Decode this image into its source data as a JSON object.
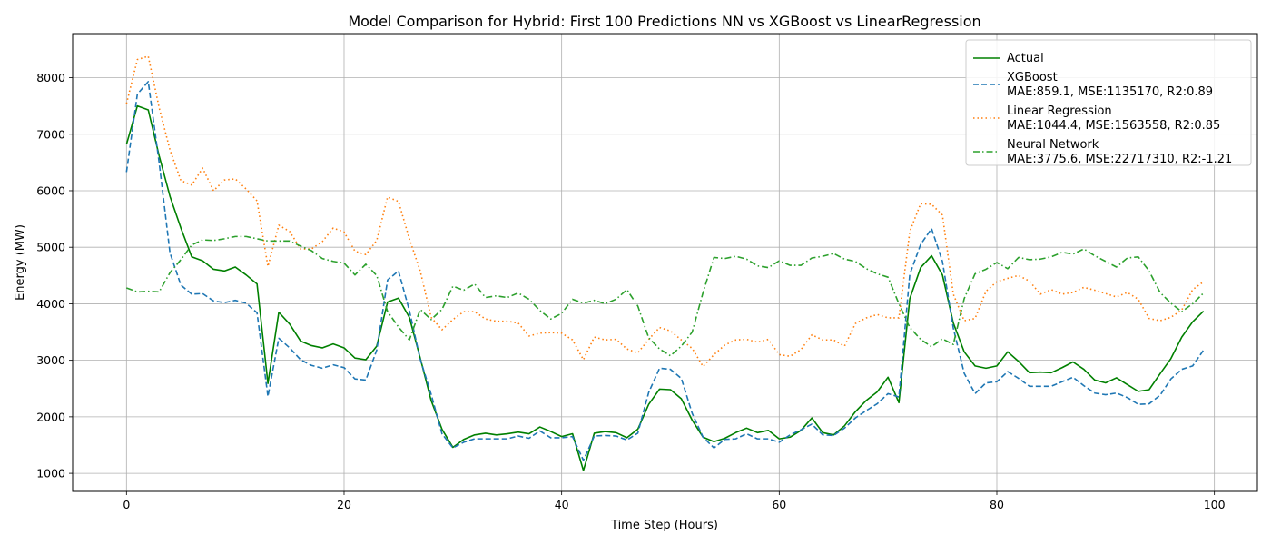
{
  "chart_data": {
    "type": "line",
    "title": "Model Comparison for Hybrid: First 100 Predictions NN vs XGBoost vs LinearRegression",
    "xlabel": "Time Step (Hours)",
    "ylabel": "Energy (MW)",
    "xlim": [
      -4.95,
      103.95
    ],
    "ylim": [
      680,
      8780
    ],
    "xticks": [
      0,
      20,
      40,
      60,
      80,
      100
    ],
    "yticks": [
      1000,
      2000,
      3000,
      4000,
      5000,
      6000,
      7000,
      8000
    ],
    "grid": true,
    "legend_position": "top-right",
    "x_start": 0,
    "series": [
      {
        "name": "Actual",
        "color": "#008000",
        "dash": "solid",
        "values": [
          6820,
          7500,
          7430,
          6620,
          5900,
          5340,
          4830,
          4760,
          4610,
          4580,
          4650,
          4510,
          4350,
          2590,
          3850,
          3640,
          3340,
          3260,
          3220,
          3290,
          3220,
          3040,
          3010,
          3250,
          4030,
          4100,
          3760,
          3040,
          2290,
          1780,
          1460,
          1600,
          1680,
          1710,
          1680,
          1700,
          1730,
          1700,
          1820,
          1740,
          1650,
          1700,
          1050,
          1710,
          1740,
          1720,
          1630,
          1780,
          2220,
          2490,
          2480,
          2320,
          1940,
          1640,
          1560,
          1620,
          1720,
          1800,
          1720,
          1760,
          1610,
          1640,
          1760,
          1980,
          1720,
          1680,
          1840,
          2090,
          2290,
          2440,
          2700,
          2250,
          4090,
          4640,
          4850,
          4510,
          3660,
          3150,
          2900,
          2860,
          2900,
          3150,
          2980,
          2780,
          2790,
          2780,
          2870,
          2970,
          2840,
          2650,
          2600,
          2690,
          2570,
          2450,
          2480,
          2760,
          3030,
          3410,
          3680,
          3870
        ]
      },
      {
        "name": "XGBoost",
        "metrics": "MAE:859.1, MSE:1135170, R2:0.89",
        "color": "#1f77b4",
        "dash": "dashed",
        "values": [
          6330,
          7710,
          7930,
          6500,
          4900,
          4330,
          4170,
          4180,
          4050,
          4020,
          4060,
          4010,
          3840,
          2360,
          3390,
          3220,
          3010,
          2910,
          2860,
          2920,
          2870,
          2670,
          2650,
          3180,
          4420,
          4580,
          3880,
          3020,
          2400,
          1700,
          1450,
          1550,
          1610,
          1610,
          1610,
          1610,
          1660,
          1620,
          1750,
          1630,
          1630,
          1650,
          1230,
          1660,
          1670,
          1660,
          1590,
          1710,
          2430,
          2860,
          2840,
          2680,
          2060,
          1640,
          1450,
          1600,
          1610,
          1700,
          1610,
          1610,
          1550,
          1680,
          1770,
          1870,
          1680,
          1670,
          1800,
          1980,
          2110,
          2230,
          2410,
          2350,
          4520,
          5050,
          5330,
          4750,
          3570,
          2770,
          2410,
          2600,
          2620,
          2800,
          2680,
          2540,
          2540,
          2540,
          2620,
          2700,
          2550,
          2420,
          2390,
          2420,
          2340,
          2220,
          2230,
          2380,
          2670,
          2840,
          2900,
          3180
        ]
      },
      {
        "name": "Linear Regression",
        "metrics": "MAE:1044.4, MSE:1563558, R2:0.85",
        "color": "#ff7f0e",
        "dash": "dotted",
        "values": [
          7540,
          8320,
          8380,
          7470,
          6720,
          6180,
          6100,
          6400,
          6000,
          6190,
          6210,
          6030,
          5820,
          4660,
          5390,
          5280,
          4970,
          4970,
          5100,
          5340,
          5270,
          4930,
          4870,
          5120,
          5890,
          5810,
          5150,
          4580,
          3760,
          3540,
          3720,
          3860,
          3860,
          3730,
          3690,
          3690,
          3660,
          3430,
          3480,
          3490,
          3480,
          3360,
          3010,
          3410,
          3360,
          3370,
          3200,
          3130,
          3370,
          3580,
          3520,
          3360,
          3210,
          2890,
          3100,
          3270,
          3360,
          3370,
          3320,
          3370,
          3100,
          3070,
          3190,
          3450,
          3360,
          3360,
          3250,
          3650,
          3750,
          3810,
          3750,
          3750,
          5280,
          5770,
          5760,
          5570,
          4170,
          3700,
          3740,
          4220,
          4390,
          4450,
          4500,
          4400,
          4170,
          4250,
          4170,
          4200,
          4290,
          4240,
          4180,
          4120,
          4200,
          4080,
          3740,
          3700,
          3760,
          3890,
          4250,
          4390
        ]
      },
      {
        "name": "Neural Network",
        "metrics": "MAE:3775.6, MSE:22717310, R2:-1.21",
        "color": "#2ca02c",
        "dash": "dashdot",
        "values": [
          4280,
          4210,
          4220,
          4210,
          4550,
          4780,
          5040,
          5130,
          5120,
          5150,
          5190,
          5190,
          5150,
          5110,
          5110,
          5110,
          5020,
          4940,
          4800,
          4750,
          4720,
          4510,
          4700,
          4500,
          3860,
          3590,
          3360,
          3900,
          3720,
          3900,
          4310,
          4240,
          4350,
          4110,
          4140,
          4110,
          4190,
          4080,
          3880,
          3730,
          3830,
          4080,
          4010,
          4060,
          4000,
          4080,
          4250,
          3960,
          3400,
          3200,
          3080,
          3250,
          3500,
          4200,
          4820,
          4800,
          4840,
          4790,
          4670,
          4640,
          4760,
          4680,
          4680,
          4810,
          4840,
          4890,
          4790,
          4750,
          4620,
          4530,
          4470,
          4000,
          3580,
          3370,
          3240,
          3380,
          3280,
          4090,
          4530,
          4610,
          4730,
          4620,
          4820,
          4780,
          4790,
          4830,
          4910,
          4880,
          4970,
          4850,
          4750,
          4650,
          4810,
          4830,
          4580,
          4200,
          4010,
          3860,
          4000,
          4190
        ]
      }
    ]
  }
}
